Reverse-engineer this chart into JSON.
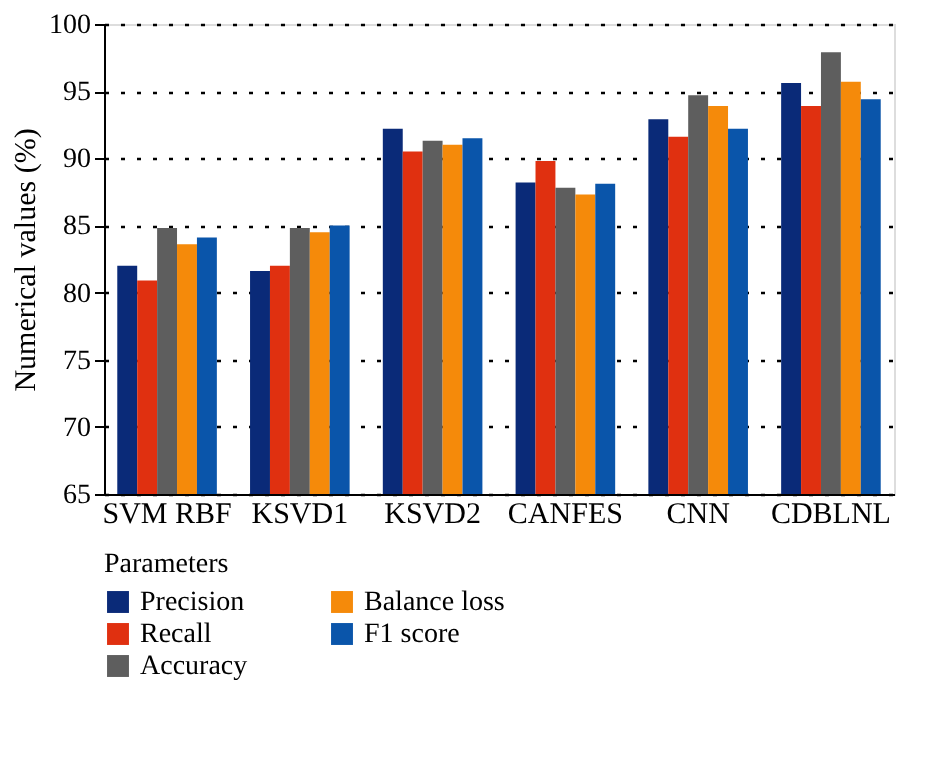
{
  "chart_data": {
    "type": "bar",
    "ylabel": "Numerical values (%)",
    "legend_title": "Parameters",
    "categories": [
      "SVM RBF",
      "KSVD1",
      "KSVD2",
      "CANFES",
      "CNN",
      "CDBLNL"
    ],
    "series": [
      {
        "name": "Precision",
        "color": "#0a2a78",
        "values": [
          82.0,
          81.6,
          92.2,
          88.2,
          92.9,
          95.6
        ]
      },
      {
        "name": "Recall",
        "color": "#e03010",
        "values": [
          80.9,
          82.0,
          90.5,
          89.8,
          91.6,
          93.9
        ]
      },
      {
        "name": "Accuracy",
        "color": "#5e5e5e",
        "values": [
          84.8,
          84.8,
          91.3,
          87.8,
          94.7,
          97.9
        ]
      },
      {
        "name": "Balance loss",
        "color": "#f58a0a",
        "values": [
          83.6,
          84.5,
          91.0,
          87.3,
          93.9,
          95.7
        ]
      },
      {
        "name": "F1 score",
        "color": "#0a55aa",
        "values": [
          84.1,
          85.0,
          91.5,
          88.1,
          92.2,
          94.4
        ]
      }
    ],
    "ylim": [
      65,
      100
    ],
    "yticks": [
      65,
      70,
      75,
      80,
      85,
      90,
      95,
      100
    ],
    "grid": "y",
    "legend": "bottom left"
  }
}
